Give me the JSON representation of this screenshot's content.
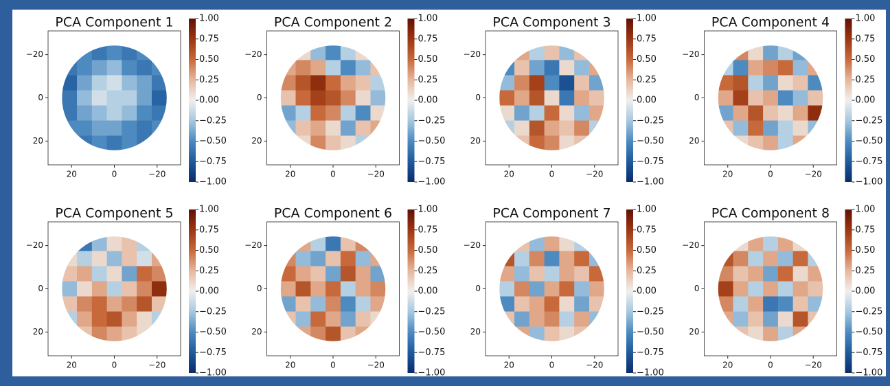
{
  "chart_data": [
    {
      "type": "heatmap",
      "title": "PCA Component 1",
      "x": [
        21,
        14,
        7,
        0,
        -7,
        -14,
        -21
      ],
      "y": [
        -21,
        -14,
        -7,
        0,
        7,
        14,
        21
      ],
      "values": [
        [
          null,
          -0.5,
          -0.6,
          -0.5,
          -0.6,
          -0.5,
          null
        ],
        [
          -0.6,
          -0.5,
          -0.4,
          -0.3,
          -0.5,
          -0.6,
          -0.5
        ],
        [
          -0.7,
          -0.4,
          -0.2,
          -0.1,
          -0.3,
          -0.4,
          -0.6
        ],
        [
          -0.6,
          -0.3,
          -0.1,
          -0.2,
          -0.2,
          -0.4,
          -0.7
        ],
        [
          -0.6,
          -0.4,
          -0.3,
          -0.2,
          -0.3,
          -0.5,
          -0.6
        ],
        [
          -0.5,
          -0.5,
          -0.4,
          -0.4,
          -0.5,
          -0.6,
          -0.5
        ],
        [
          null,
          -0.6,
          -0.5,
          -0.6,
          -0.5,
          -0.6,
          null
        ]
      ],
      "xlim": [
        31,
        -31
      ],
      "ylim": [
        -31,
        31
      ],
      "xticks": [
        20,
        0,
        {
          "value": -20,
          "label": "−20"
        }
      ],
      "yticks": [
        {
          "value": -20,
          "label": "−20"
        },
        0,
        20
      ],
      "clim": [
        -1,
        1
      ],
      "cticks": [
        {
          "value": 1,
          "label": "1.00"
        },
        {
          "value": 0.75,
          "label": "0.75"
        },
        {
          "value": 0.5,
          "label": "0.50"
        },
        {
          "value": 0.25,
          "label": "0.25"
        },
        {
          "value": 0,
          "label": "0.00"
        },
        {
          "value": -0.25,
          "label": "−0.25"
        },
        {
          "value": -0.5,
          "label": "−0.50"
        },
        {
          "value": -0.75,
          "label": "−0.75"
        },
        {
          "value": -1,
          "label": "−1.00"
        }
      ],
      "colors": [
        "#0b2b6a",
        "#1f5a9c",
        "#4d8ac0",
        "#a6c8e0",
        "#f0efee",
        "#e6b79c",
        "#c7693a",
        "#9b3612",
        "#611004"
      ]
    },
    {
      "type": "heatmap",
      "title": "PCA Component 2",
      "x": [
        21,
        14,
        7,
        0,
        -7,
        -14,
        -21
      ],
      "y": [
        -21,
        -14,
        -7,
        0,
        7,
        14,
        21
      ],
      "values": [
        [
          null,
          0.1,
          -0.3,
          -0.5,
          -0.2,
          0.1,
          null
        ],
        [
          0.3,
          0.4,
          0.3,
          -0.2,
          -0.5,
          -0.3,
          0.2
        ],
        [
          0.4,
          0.6,
          0.8,
          0.5,
          0.3,
          0.2,
          -0.2
        ],
        [
          0.2,
          0.5,
          0.7,
          0.6,
          0.4,
          0.1,
          -0.3
        ],
        [
          -0.4,
          -0.2,
          0.5,
          0.4,
          -0.2,
          -0.5,
          0.1
        ],
        [
          -0.3,
          0.2,
          0.3,
          0.1,
          -0.4,
          0.2,
          0.3
        ],
        [
          null,
          0.1,
          0.4,
          0.2,
          0.1,
          -0.2,
          null
        ]
      ],
      "xlim": [
        31,
        -31
      ],
      "ylim": [
        -31,
        31
      ],
      "xticks": [
        20,
        0,
        {
          "value": -20,
          "label": "−20"
        }
      ],
      "yticks": [
        {
          "value": -20,
          "label": "−20"
        },
        0,
        20
      ],
      "clim": [
        -1,
        1
      ],
      "cticks": [
        {
          "value": 1,
          "label": "1.00"
        },
        {
          "value": 0.75,
          "label": "0.75"
        },
        {
          "value": 0.5,
          "label": "0.50"
        },
        {
          "value": 0.25,
          "label": "0.25"
        },
        {
          "value": 0,
          "label": "0.00"
        },
        {
          "value": -0.25,
          "label": "−0.25"
        },
        {
          "value": -0.5,
          "label": "−0.50"
        },
        {
          "value": -0.75,
          "label": "−0.75"
        },
        {
          "value": -1,
          "label": "−1.00"
        }
      ],
      "colors": [
        "#0b2b6a",
        "#1f5a9c",
        "#4d8ac0",
        "#a6c8e0",
        "#f0efee",
        "#e6b79c",
        "#c7693a",
        "#9b3612",
        "#611004"
      ]
    },
    {
      "type": "heatmap",
      "title": "PCA Component 3",
      "x": [
        21,
        14,
        7,
        0,
        -7,
        -14,
        -21
      ],
      "y": [
        -21,
        -14,
        -7,
        0,
        7,
        14,
        21
      ],
      "values": [
        [
          null,
          0.3,
          -0.2,
          0.2,
          -0.3,
          0.2,
          null
        ],
        [
          -0.5,
          0.2,
          -0.4,
          -0.6,
          0.1,
          -0.3,
          0.3
        ],
        [
          -0.3,
          0.4,
          0.7,
          -0.5,
          -0.8,
          0.2,
          -0.4
        ],
        [
          0.5,
          0.3,
          0.6,
          0.1,
          -0.6,
          0.3,
          0.2
        ],
        [
          0.1,
          -0.4,
          -0.2,
          0.5,
          0.1,
          -0.3,
          0.3
        ],
        [
          -0.2,
          0.1,
          0.6,
          0.3,
          0.2,
          0.4,
          -0.2
        ],
        [
          null,
          0.2,
          0.5,
          0.4,
          0.1,
          0.2,
          null
        ]
      ],
      "xlim": [
        31,
        -31
      ],
      "ylim": [
        -31,
        31
      ],
      "xticks": [
        20,
        0,
        {
          "value": -20,
          "label": "−20"
        }
      ],
      "yticks": [
        {
          "value": -20,
          "label": "−20"
        },
        0,
        20
      ],
      "clim": [
        -1,
        1
      ],
      "cticks": [
        {
          "value": 1,
          "label": "1.00"
        },
        {
          "value": 0.75,
          "label": "0.75"
        },
        {
          "value": 0.5,
          "label": "0.50"
        },
        {
          "value": 0.25,
          "label": "0.25"
        },
        {
          "value": 0,
          "label": "0.00"
        },
        {
          "value": -0.25,
          "label": "−0.25"
        },
        {
          "value": -0.5,
          "label": "−0.50"
        },
        {
          "value": -0.75,
          "label": "−0.75"
        },
        {
          "value": -1,
          "label": "−1.00"
        }
      ],
      "colors": [
        "#0b2b6a",
        "#1f5a9c",
        "#4d8ac0",
        "#a6c8e0",
        "#f0efee",
        "#e6b79c",
        "#c7693a",
        "#9b3612",
        "#611004"
      ]
    },
    {
      "type": "heatmap",
      "title": "PCA Component 4",
      "x": [
        21,
        14,
        7,
        0,
        -7,
        -14,
        -21
      ],
      "y": [
        -21,
        -14,
        -7,
        0,
        7,
        14,
        21
      ],
      "values": [
        [
          null,
          0.4,
          0.1,
          -0.4,
          -0.2,
          -0.4,
          null
        ],
        [
          -0.2,
          -0.5,
          0.3,
          0.4,
          0.5,
          -0.3,
          0.3
        ],
        [
          0.5,
          0.6,
          -0.2,
          -0.4,
          0.1,
          0.2,
          -0.5
        ],
        [
          0.3,
          0.7,
          0.2,
          0.3,
          -0.5,
          -0.3,
          0.2
        ],
        [
          -0.4,
          0.3,
          0.6,
          0.2,
          0.1,
          0.3,
          0.8
        ],
        [
          0.2,
          -0.3,
          0.5,
          -0.4,
          -0.2,
          0.1,
          -0.3
        ],
        [
          null,
          0.1,
          0.2,
          0.3,
          -0.2,
          0.3,
          null
        ]
      ],
      "xlim": [
        31,
        -31
      ],
      "ylim": [
        -31,
        31
      ],
      "xticks": [
        20,
        0,
        {
          "value": -20,
          "label": "−20"
        }
      ],
      "yticks": [
        {
          "value": -20,
          "label": "−20"
        },
        0,
        20
      ],
      "clim": [
        -1,
        1
      ],
      "cticks": [
        {
          "value": 1,
          "label": "1.00"
        },
        {
          "value": 0.75,
          "label": "0.75"
        },
        {
          "value": 0.5,
          "label": "0.50"
        },
        {
          "value": 0.25,
          "label": "0.25"
        },
        {
          "value": 0,
          "label": "0.00"
        },
        {
          "value": -0.25,
          "label": "−0.25"
        },
        {
          "value": -0.5,
          "label": "−0.50"
        },
        {
          "value": -0.75,
          "label": "−0.75"
        },
        {
          "value": -1,
          "label": "−1.00"
        }
      ],
      "colors": [
        "#0b2b6a",
        "#1f5a9c",
        "#4d8ac0",
        "#a6c8e0",
        "#f0efee",
        "#e6b79c",
        "#c7693a",
        "#9b3612",
        "#611004"
      ]
    },
    {
      "type": "heatmap",
      "title": "PCA Component 5",
      "x": [
        21,
        14,
        7,
        0,
        -7,
        -14,
        -21
      ],
      "y": [
        -21,
        -14,
        -7,
        0,
        7,
        14,
        21
      ],
      "values": [
        [
          null,
          -0.6,
          -0.3,
          0.1,
          0.2,
          -0.2,
          null
        ],
        [
          0.1,
          -0.2,
          0.1,
          -0.3,
          0.2,
          -0.1,
          0.3
        ],
        [
          0.2,
          0.3,
          -0.2,
          0.1,
          -0.4,
          0.5,
          0.4
        ],
        [
          -0.3,
          0.1,
          0.3,
          -0.2,
          0.2,
          0.4,
          0.8
        ],
        [
          0.2,
          0.4,
          0.5,
          0.3,
          0.4,
          0.6,
          0.2
        ],
        [
          -0.2,
          0.3,
          0.5,
          0.6,
          0.3,
          0.1,
          -0.2
        ],
        [
          null,
          0.2,
          0.4,
          0.3,
          0.2,
          0.1,
          null
        ]
      ],
      "xlim": [
        31,
        -31
      ],
      "ylim": [
        -31,
        31
      ],
      "xticks": [
        20,
        0,
        {
          "value": -20,
          "label": "−20"
        }
      ],
      "yticks": [
        {
          "value": -20,
          "label": "−20"
        },
        0,
        20
      ],
      "clim": [
        -1,
        1
      ],
      "cticks": [
        {
          "value": 1,
          "label": "1.00"
        },
        {
          "value": 0.75,
          "label": "0.75"
        },
        {
          "value": 0.5,
          "label": "0.50"
        },
        {
          "value": 0.25,
          "label": "0.25"
        },
        {
          "value": 0,
          "label": "0.00"
        },
        {
          "value": -0.25,
          "label": "−0.25"
        },
        {
          "value": -0.5,
          "label": "−0.50"
        },
        {
          "value": -0.75,
          "label": "−0.75"
        },
        {
          "value": -1,
          "label": "−1.00"
        }
      ],
      "colors": [
        "#0b2b6a",
        "#1f5a9c",
        "#4d8ac0",
        "#a6c8e0",
        "#f0efee",
        "#e6b79c",
        "#c7693a",
        "#9b3612",
        "#611004"
      ]
    },
    {
      "type": "heatmap",
      "title": "PCA Component 6",
      "x": [
        21,
        14,
        7,
        0,
        -7,
        -14,
        -21
      ],
      "y": [
        -21,
        -14,
        -7,
        0,
        7,
        14,
        21
      ],
      "values": [
        [
          null,
          0.3,
          -0.2,
          -0.6,
          0.2,
          0.4,
          null
        ],
        [
          0.4,
          -0.3,
          -0.4,
          0.2,
          0.5,
          -0.3,
          0.3
        ],
        [
          0.5,
          0.3,
          0.2,
          -0.4,
          0.6,
          0.3,
          -0.4
        ],
        [
          0.3,
          0.6,
          0.3,
          0.5,
          -0.2,
          0.3,
          0.4
        ],
        [
          -0.4,
          0.2,
          -0.3,
          0.4,
          -0.5,
          -0.2,
          0.3
        ],
        [
          0.2,
          -0.3,
          0.5,
          0.3,
          -0.4,
          0.2,
          0.1
        ],
        [
          null,
          0.3,
          0.4,
          0.6,
          0.2,
          0.3,
          null
        ]
      ],
      "xlim": [
        31,
        -31
      ],
      "ylim": [
        -31,
        31
      ],
      "xticks": [
        20,
        0,
        {
          "value": -20,
          "label": "−20"
        }
      ],
      "yticks": [
        {
          "value": -20,
          "label": "−20"
        },
        0,
        20
      ],
      "clim": [
        -1,
        1
      ],
      "cticks": [
        {
          "value": 1,
          "label": "1.00"
        },
        {
          "value": 0.75,
          "label": "0.75"
        },
        {
          "value": 0.5,
          "label": "0.50"
        },
        {
          "value": 0.25,
          "label": "0.25"
        },
        {
          "value": 0,
          "label": "0.00"
        },
        {
          "value": -0.25,
          "label": "−0.25"
        },
        {
          "value": -0.5,
          "label": "−0.50"
        },
        {
          "value": -0.75,
          "label": "−0.75"
        },
        {
          "value": -1,
          "label": "−1.00"
        }
      ],
      "colors": [
        "#0b2b6a",
        "#1f5a9c",
        "#4d8ac0",
        "#a6c8e0",
        "#f0efee",
        "#e6b79c",
        "#c7693a",
        "#9b3612",
        "#611004"
      ]
    },
    {
      "type": "heatmap",
      "title": "PCA Component 7",
      "x": [
        21,
        14,
        7,
        0,
        -7,
        -14,
        -21
      ],
      "y": [
        -21,
        -14,
        -7,
        0,
        7,
        14,
        21
      ],
      "values": [
        [
          null,
          0.2,
          -0.3,
          0.3,
          0.1,
          -0.2,
          null
        ],
        [
          0.6,
          -0.2,
          0.4,
          -0.5,
          0.3,
          0.5,
          -0.3
        ],
        [
          0.3,
          -0.3,
          0.2,
          -0.2,
          0.3,
          0.2,
          0.5
        ],
        [
          -0.2,
          0.4,
          -0.4,
          0.3,
          0.5,
          -0.3,
          0.3
        ],
        [
          -0.5,
          0.2,
          0.3,
          0.5,
          0.1,
          -0.4,
          0.2
        ],
        [
          0.2,
          -0.4,
          0.3,
          0.4,
          -0.2,
          0.3,
          -0.3
        ],
        [
          null,
          0.3,
          -0.3,
          0.2,
          0.1,
          0.2,
          null
        ]
      ],
      "xlim": [
        31,
        -31
      ],
      "ylim": [
        -31,
        31
      ],
      "xticks": [
        20,
        0,
        {
          "value": -20,
          "label": "−20"
        }
      ],
      "yticks": [
        {
          "value": -20,
          "label": "−20"
        },
        0,
        20
      ],
      "clim": [
        -1,
        1
      ],
      "cticks": [
        {
          "value": 1,
          "label": "1.00"
        },
        {
          "value": 0.75,
          "label": "0.75"
        },
        {
          "value": 0.5,
          "label": "0.50"
        },
        {
          "value": 0.25,
          "label": "0.25"
        },
        {
          "value": 0,
          "label": "0.00"
        },
        {
          "value": -0.25,
          "label": "−0.25"
        },
        {
          "value": -0.5,
          "label": "−0.50"
        },
        {
          "value": -0.75,
          "label": "−0.75"
        },
        {
          "value": -1,
          "label": "−1.00"
        }
      ],
      "colors": [
        "#0b2b6a",
        "#1f5a9c",
        "#4d8ac0",
        "#a6c8e0",
        "#f0efee",
        "#e6b79c",
        "#c7693a",
        "#9b3612",
        "#611004"
      ]
    },
    {
      "type": "heatmap",
      "title": "PCA Component 8",
      "x": [
        21,
        14,
        7,
        0,
        -7,
        -14,
        -21
      ],
      "y": [
        -21,
        -14,
        -7,
        0,
        7,
        14,
        21
      ],
      "values": [
        [
          null,
          0.1,
          0.3,
          -0.2,
          0.3,
          0.1,
          null
        ],
        [
          0.6,
          0.4,
          -0.2,
          0.3,
          -0.3,
          0.5,
          -0.2
        ],
        [
          0.4,
          0.2,
          0.3,
          -0.4,
          0.5,
          0.1,
          0.3
        ],
        [
          0.7,
          0.3,
          -0.2,
          0.3,
          -0.2,
          0.3,
          0.2
        ],
        [
          0.4,
          -0.2,
          0.3,
          -0.6,
          -0.5,
          0.2,
          -0.3
        ],
        [
          0.3,
          -0.3,
          0.2,
          -0.4,
          0.1,
          0.6,
          0.2
        ],
        [
          null,
          0.2,
          0.1,
          0.3,
          -0.2,
          0.3,
          null
        ]
      ],
      "xlim": [
        31,
        -31
      ],
      "ylim": [
        -31,
        31
      ],
      "xticks": [
        20,
        0,
        {
          "value": -20,
          "label": "−20"
        }
      ],
      "yticks": [
        {
          "value": -20,
          "label": "−20"
        },
        0,
        20
      ],
      "clim": [
        -1,
        1
      ],
      "cticks": [
        {
          "value": 1,
          "label": "1.00"
        },
        {
          "value": 0.75,
          "label": "0.75"
        },
        {
          "value": 0.5,
          "label": "0.50"
        },
        {
          "value": 0.25,
          "label": "0.25"
        },
        {
          "value": 0,
          "label": "0.00"
        },
        {
          "value": -0.25,
          "label": "−0.25"
        },
        {
          "value": -0.5,
          "label": "−0.50"
        },
        {
          "value": -0.75,
          "label": "−0.75"
        },
        {
          "value": -1,
          "label": "−1.00"
        }
      ],
      "colors": [
        "#0b2b6a",
        "#1f5a9c",
        "#4d8ac0",
        "#a6c8e0",
        "#f0efee",
        "#e6b79c",
        "#c7693a",
        "#9b3612",
        "#611004"
      ]
    }
  ]
}
